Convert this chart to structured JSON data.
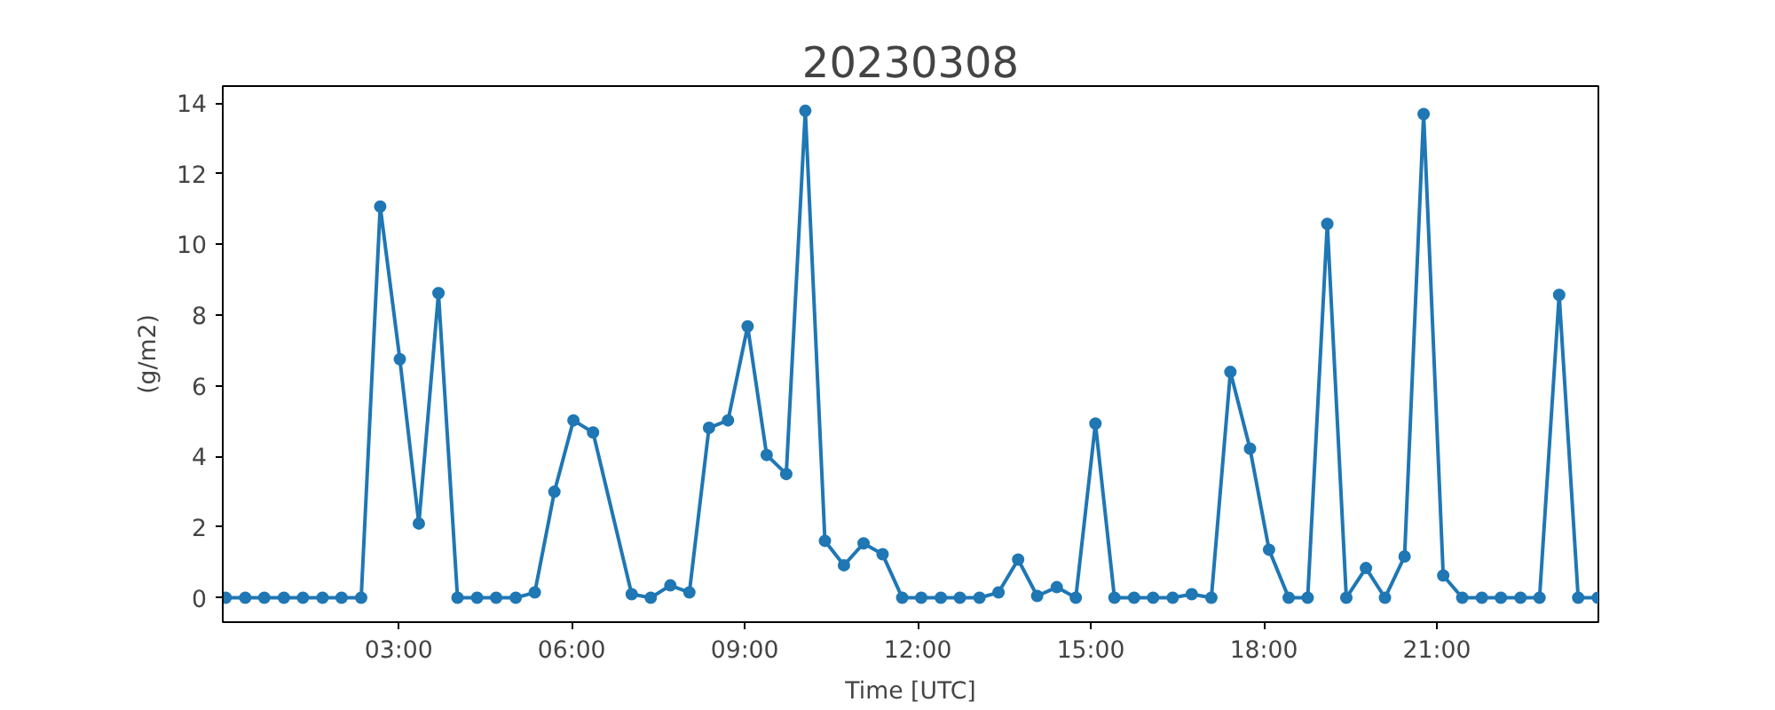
{
  "chart_data": {
    "type": "line",
    "title": "20230308",
    "xlabel": "Time [UTC]",
    "ylabel": "(g/m2)",
    "x": [
      0,
      0.34,
      0.67,
      1.01,
      1.34,
      1.68,
      2.01,
      2.35,
      2.68,
      3.02,
      3.35,
      3.69,
      4.02,
      4.36,
      4.69,
      5.03,
      5.36,
      5.7,
      6.03,
      6.37,
      7.04,
      7.37,
      7.71,
      8.04,
      8.38,
      8.71,
      9.05,
      9.38,
      9.72,
      10.05,
      10.39,
      10.72,
      11.06,
      11.39,
      11.73,
      12.06,
      12.4,
      12.73,
      13.07,
      13.4,
      13.74,
      14.07,
      14.41,
      14.74,
      15.08,
      15.41,
      15.75,
      16.08,
      16.42,
      16.75,
      17.09,
      17.42,
      17.76,
      18.09,
      18.43,
      18.76,
      19.1,
      19.43,
      19.77,
      20.1,
      20.44,
      20.77,
      21.11,
      21.44,
      21.78,
      22.11,
      22.45,
      22.78,
      23.12,
      23.45,
      23.79
    ],
    "series": [
      {
        "color": "#1f77b4",
        "values": [
          0,
          0,
          0,
          0,
          0,
          0,
          0,
          0,
          11.07,
          6.75,
          2.1,
          8.62,
          0,
          0,
          0,
          0,
          0.15,
          3.0,
          5.02,
          4.68,
          0.1,
          0,
          0.35,
          0.15,
          4.81,
          5.02,
          7.68,
          4.04,
          3.5,
          13.78,
          1.61,
          0.92,
          1.54,
          1.23,
          0,
          0,
          0,
          0,
          0,
          0.15,
          1.08,
          0.05,
          0.3,
          0,
          4.93,
          0,
          0,
          0,
          0,
          0.1,
          0,
          6.39,
          4.22,
          1.36,
          0,
          0,
          10.58,
          0,
          0.84,
          0,
          1.17,
          13.69,
          0.63,
          0,
          0,
          0,
          0,
          0,
          8.57,
          0,
          0
        ]
      }
    ],
    "xlim": [
      -0.05,
      23.8
    ],
    "ylim": [
      -0.69,
      14.48
    ],
    "xticks": [
      {
        "value": 3,
        "label": "03:00"
      },
      {
        "value": 6,
        "label": "06:00"
      },
      {
        "value": 9,
        "label": "09:00"
      },
      {
        "value": 12,
        "label": "12:00"
      },
      {
        "value": 15,
        "label": "15:00"
      },
      {
        "value": 18,
        "label": "18:00"
      },
      {
        "value": 21,
        "label": "21:00"
      }
    ],
    "yticks": [
      0,
      2,
      4,
      6,
      8,
      10,
      12,
      14
    ],
    "marker": "circle",
    "line_style": "solid"
  }
}
